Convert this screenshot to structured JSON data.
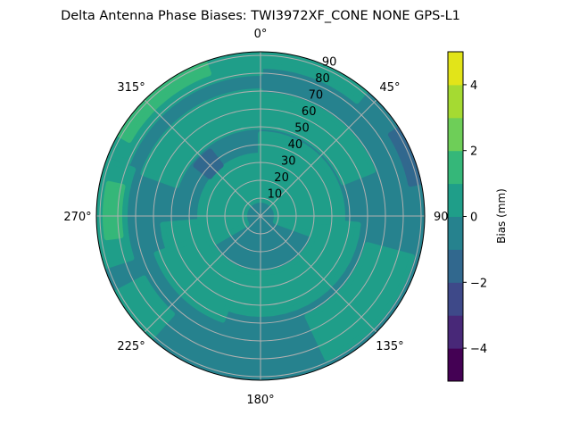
{
  "chart_data": {
    "type": "heatmap",
    "subtype": "polar-filled-contour",
    "title": "Delta Antenna Phase Biases: TWI3972XF_CONE  NONE GPS-L1",
    "theta_direction": "clockwise",
    "theta_zero": "north",
    "theta_ticks": [
      "0°",
      "45°",
      "90°",
      "135°",
      "180°",
      "225°",
      "270°",
      "315°"
    ],
    "r_ticks": [
      "10",
      "20",
      "30",
      "40",
      "50",
      "60",
      "70",
      "80",
      "90"
    ],
    "r_range": [
      0,
      92
    ],
    "grid": true,
    "colorbar": {
      "label": "Bias (mm)",
      "levels": [
        -5,
        -4,
        -3,
        -2,
        -1,
        0,
        1,
        2,
        3,
        4,
        5
      ],
      "ticks": [
        "−4",
        "−2",
        "0",
        "2",
        "4"
      ],
      "colors": [
        "#440154",
        "#482878",
        "#3e4989",
        "#31688e",
        "#26828e",
        "#1f9e89",
        "#35b779",
        "#6ece58",
        "#a5da32",
        "#e2e419"
      ],
      "colormap": "viridis"
    },
    "background_level": [
      -1,
      0
    ],
    "regions": [
      {
        "level": [
          0,
          1
        ],
        "az": [
          240,
          360
        ],
        "zen": [
          9,
          34
        ]
      },
      {
        "level": [
          0,
          1
        ],
        "az": [
          0,
          110
        ],
        "zen": [
          9,
          46
        ]
      },
      {
        "level": [
          0,
          1
        ],
        "az": [
          290,
          360
        ],
        "zen": [
          50,
          70
        ]
      },
      {
        "level": [
          0,
          1
        ],
        "az": [
          0,
          68
        ],
        "zen": [
          50,
          68
        ]
      },
      {
        "level": [
          0,
          1
        ],
        "az": [
          95,
          265
        ],
        "zen": [
          32,
          55
        ]
      },
      {
        "level": [
          0,
          1
        ],
        "az": [
          200,
          250
        ],
        "zen": [
          40,
          62
        ]
      },
      {
        "level": [
          0,
          1
        ],
        "az": [
          105,
          155
        ],
        "zen": [
          62,
          88
        ]
      },
      {
        "level": [
          0,
          1
        ],
        "az": [
          222,
          242
        ],
        "zen": [
          74,
          92
        ]
      },
      {
        "level": [
          0,
          1
        ],
        "az": [
          252,
          290
        ],
        "zen": [
          76,
          92
        ]
      },
      {
        "level": [
          0,
          1
        ],
        "az": [
          292,
          360
        ],
        "zen": [
          80,
          92
        ]
      },
      {
        "level": [
          0,
          1
        ],
        "az": [
          0,
          40
        ],
        "zen": [
          84,
          92
        ]
      },
      {
        "level": [
          1,
          2
        ],
        "az": [
          300,
          340
        ],
        "zen": [
          85,
          92
        ]
      },
      {
        "level": [
          1,
          2
        ],
        "az": [
          262,
          282
        ],
        "zen": [
          79,
          87
        ]
      },
      {
        "level": [
          -2,
          -1
        ],
        "az": [
          308,
          322
        ],
        "zen": [
          36,
          46
        ]
      },
      {
        "level": [
          -2,
          -1
        ],
        "az": [
          58,
          78
        ],
        "zen": [
          86,
          92
        ]
      }
    ]
  }
}
